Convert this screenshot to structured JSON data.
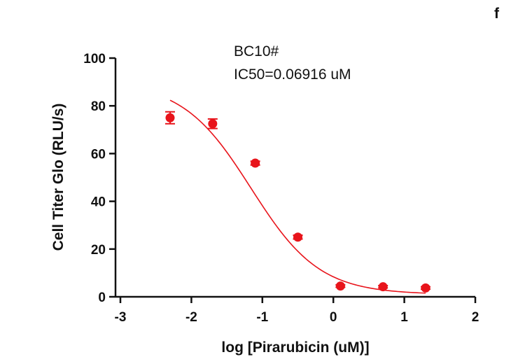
{
  "panel_label": "f",
  "colors": {
    "series": "#e8141b",
    "axis": "#111111"
  },
  "chart_data": {
    "type": "scatter",
    "title": "",
    "annotations": [
      "BC10#",
      "IC50=0.06916 uM"
    ],
    "xlabel": "log [Pirarubicin (uM)]",
    "ylabel": "Cell Titer Glo (RLU/s)",
    "xlim": [
      -3,
      2
    ],
    "ylim": [
      0,
      100
    ],
    "x_ticks": [
      -3,
      -2,
      -1,
      0,
      1,
      2
    ],
    "y_ticks": [
      0,
      20,
      40,
      60,
      80,
      100
    ],
    "x_tick_labels": [
      "-3",
      "-2",
      "-1",
      "0",
      "1",
      "2"
    ],
    "y_tick_labels": [
      "0",
      "20",
      "40",
      "60",
      "80",
      "100"
    ],
    "grid": false,
    "series": [
      {
        "points": [
          {
            "x": -2.3,
            "y": 75.0,
            "err": 2.5
          },
          {
            "x": -1.7,
            "y": 72.5,
            "err": 2.0
          },
          {
            "x": -1.1,
            "y": 56.0,
            "err": 0.8
          },
          {
            "x": -0.5,
            "y": 25.0,
            "err": 0.8
          },
          {
            "x": 0.1,
            "y": 4.5,
            "err": 0.5
          },
          {
            "x": 0.7,
            "y": 4.2,
            "err": 0.5
          },
          {
            "x": 1.3,
            "y": 3.7,
            "err": 0.5
          }
        ]
      }
    ],
    "fit_curve": {
      "model": "four-parameter logistic",
      "top": 90,
      "bottom": 1,
      "log_ic50": -1.16,
      "hill_slope": -0.9,
      "x_range": [
        -2.3,
        1.3
      ]
    }
  }
}
